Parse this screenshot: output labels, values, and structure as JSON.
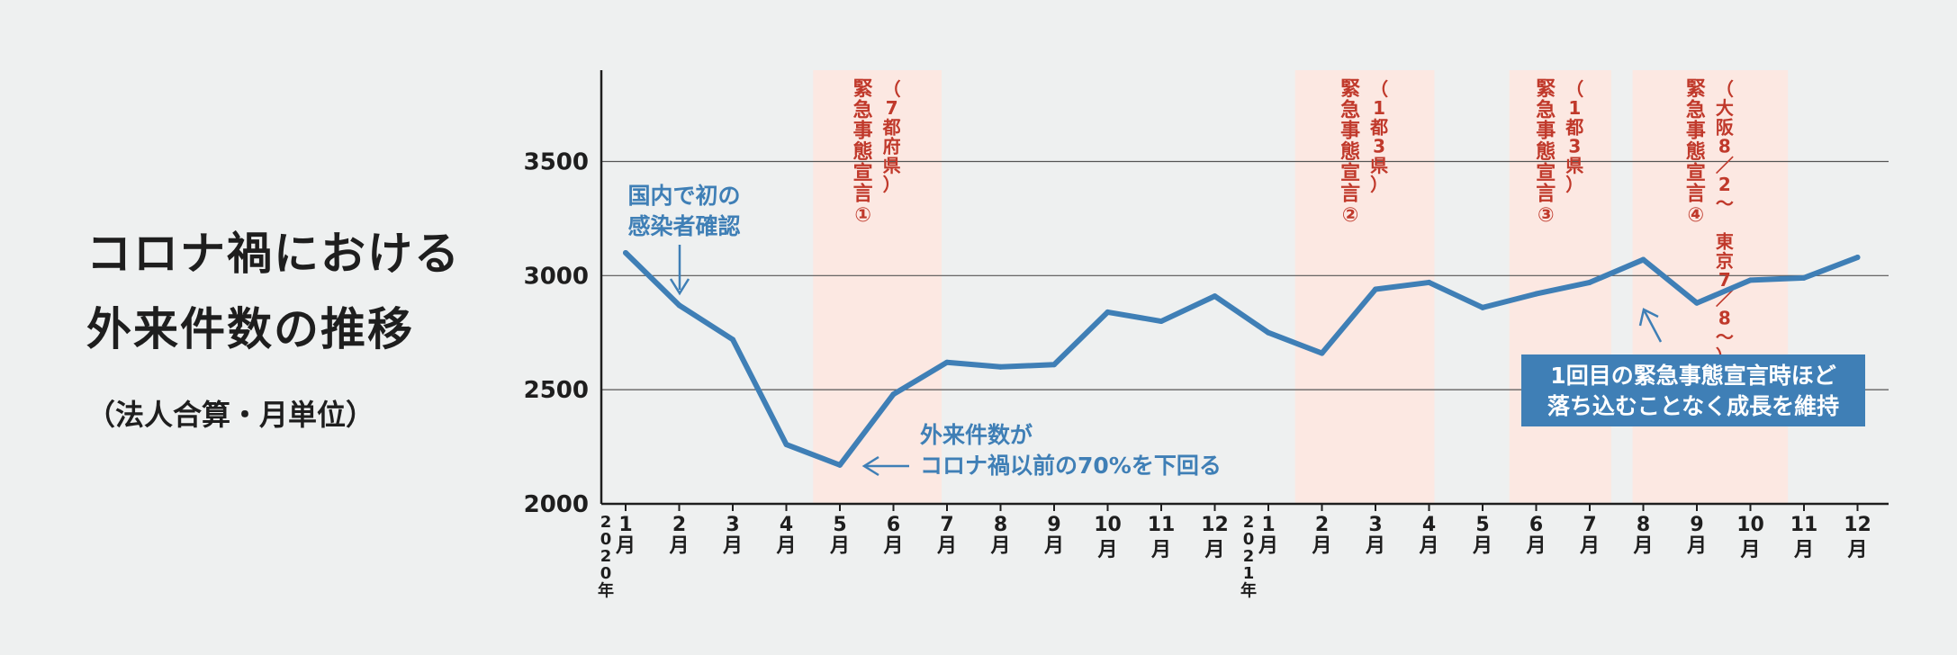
{
  "title_lines": [
    "コロナ禍における",
    "外来件数の推移"
  ],
  "subtitle": "（法人合算・月単位）",
  "colors": {
    "line": "#3f7fb6",
    "shade": "#fce8e2",
    "emergency_text": "#c0392b",
    "callout_box": "#3f7fb6",
    "annotation_text": "#3f7fb6",
    "axis": "#1e1e1e"
  },
  "annotations": {
    "first_case": [
      "国内で初の",
      "感染者確認"
    ],
    "drop": [
      "外来件数が",
      "コロナ禍以前の70%を下回る"
    ],
    "growth": [
      "1回目の緊急事態宣言時ほど",
      "落ち込むことなく成長を維持"
    ]
  },
  "emergency": [
    {
      "label": "緊急事態宣言①",
      "note": "（7都府県）",
      "from": 3.5,
      "to": 5.9
    },
    {
      "label": "緊急事態宣言②",
      "note": "（1都3県）",
      "from": 12.5,
      "to": 15.1
    },
    {
      "label": "緊急事態宣言③",
      "note": "（1都3県）",
      "from": 16.5,
      "to": 18.4
    },
    {
      "label": "緊急事態宣言④",
      "note": "（大阪8／2〜 東京7／8〜）",
      "from": 18.8,
      "to": 21.7
    }
  ],
  "chart_data": {
    "type": "line",
    "title": "コロナ禍における外来件数の推移",
    "subtitle": "（法人合算・月単位）",
    "ylim": [
      2000,
      3900
    ],
    "yticks": [
      2000,
      2500,
      3000,
      3500
    ],
    "grid": true,
    "year_labels": [
      "2020年",
      "2021年"
    ],
    "categories": [
      "1月",
      "2月",
      "3月",
      "4月",
      "5月",
      "6月",
      "7月",
      "8月",
      "9月",
      "10月",
      "11月",
      "12月",
      "1月",
      "2月",
      "3月",
      "4月",
      "5月",
      "6月",
      "7月",
      "8月",
      "9月",
      "10月",
      "11月",
      "12月"
    ],
    "series": [
      {
        "values": [
          3100,
          2870,
          2720,
          2260,
          2170,
          2480,
          2620,
          2600,
          2610,
          2840,
          2800,
          2910,
          2750,
          2660,
          2940,
          2970,
          2860,
          2920,
          2970,
          3070,
          2880,
          2980,
          2990,
          3080
        ]
      }
    ]
  }
}
